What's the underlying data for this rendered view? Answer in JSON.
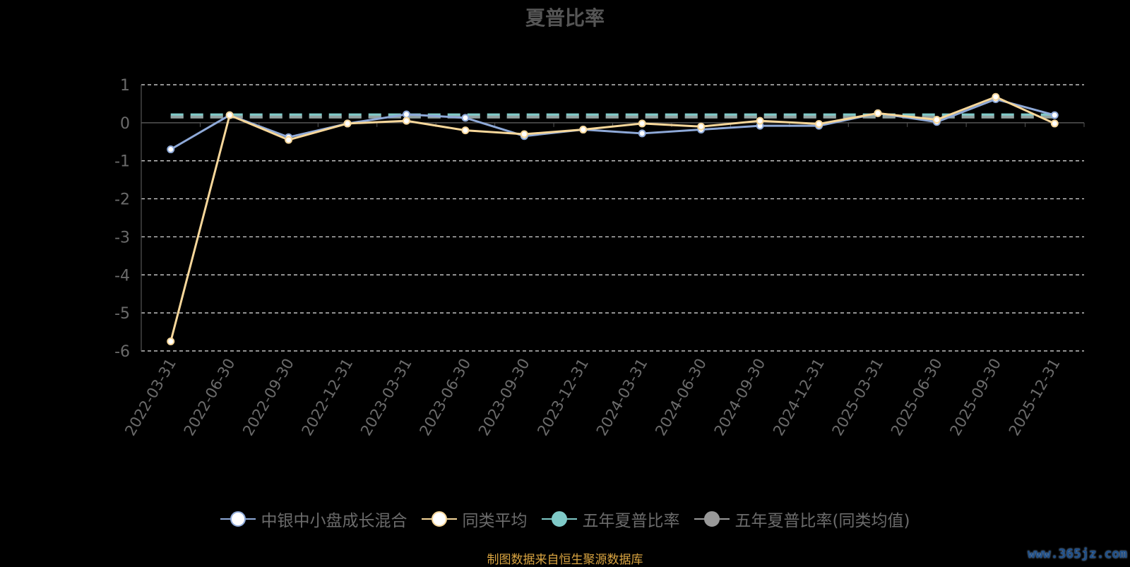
{
  "title": "夏普比率",
  "source": "制图数据来自恒生聚源数据库",
  "watermark": "www.365jz.com",
  "colors": {
    "fund": "#8ea9d8",
    "avg": "#f7d79a",
    "five_year": "#7fcac8",
    "five_year_avg": "#999999"
  },
  "legend": [
    {
      "label": "中银中小盘成长混合",
      "color": "#8ea9d8"
    },
    {
      "label": "同类平均",
      "color": "#f7d79a"
    },
    {
      "label": "五年夏普比率",
      "color": "#7fcac8"
    },
    {
      "label": "五年夏普比率(同类均值)",
      "color": "#999999"
    }
  ],
  "chart_data": {
    "type": "line",
    "categories": [
      "2022-03-31",
      "2022-06-30",
      "2022-09-30",
      "2022-12-31",
      "2023-03-31",
      "2023-06-30",
      "2023-09-30",
      "2023-12-31",
      "2024-03-31",
      "2024-06-30",
      "2024-09-30",
      "2024-12-31",
      "2025-03-31",
      "2025-06-30",
      "2025-09-30",
      "2025-12-31"
    ],
    "ylim": [
      -6,
      1
    ],
    "yticks": [
      "1",
      "0",
      "-1",
      "-2",
      "-3",
      "-4",
      "-5",
      "-6"
    ],
    "grid": true,
    "legend_position": "bottom",
    "series": [
      {
        "name": "中银中小盘成长混合",
        "values": [
          -0.7,
          0.2,
          -0.38,
          -0.02,
          0.22,
          0.13,
          -0.35,
          -0.18,
          -0.28,
          -0.18,
          -0.08,
          -0.08,
          0.25,
          0.02,
          0.62,
          0.2
        ]
      },
      {
        "name": "同类平均",
        "values": [
          -5.75,
          0.2,
          -0.45,
          -0.02,
          0.05,
          -0.2,
          -0.3,
          -0.18,
          -0.02,
          -0.1,
          0.05,
          -0.03,
          0.25,
          0.08,
          0.68,
          -0.02
        ]
      },
      {
        "name": "五年夏普比率",
        "values": [
          0.18,
          0.18,
          0.18,
          0.18,
          0.18,
          0.18,
          0.18,
          0.18,
          0.18,
          0.18,
          0.18,
          0.18,
          0.18,
          0.18,
          0.18,
          0.18
        ]
      },
      {
        "name": "五年夏普比率(同类均值)",
        "values": [
          0.15,
          0.15,
          0.15,
          0.15,
          0.15,
          0.15,
          0.15,
          0.15,
          0.15,
          0.15,
          0.15,
          0.15,
          0.15,
          0.15,
          0.15,
          0.15
        ]
      }
    ]
  }
}
